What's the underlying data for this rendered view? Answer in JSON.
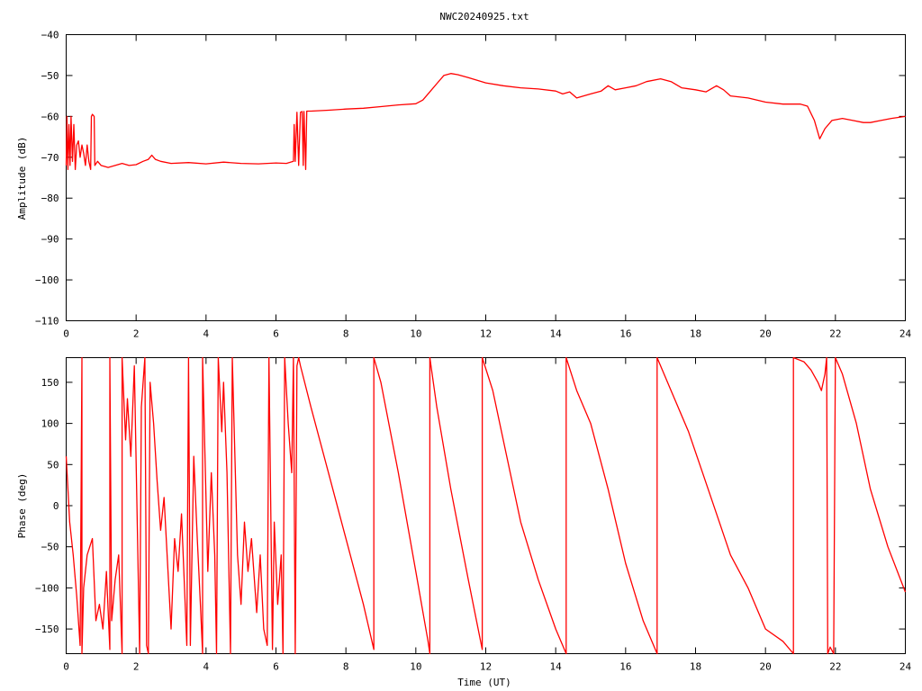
{
  "title": "NWC20240925.txt",
  "colors": {
    "series": "#ff0000",
    "axes": "#000000",
    "background": "#ffffff"
  },
  "chart_data": [
    {
      "type": "line",
      "ylabel": "Amplitude (dB)",
      "xlabel": "",
      "xlim": [
        0,
        24
      ],
      "ylim": [
        -110,
        -40
      ],
      "x_ticks": [
        "0",
        "2",
        "4",
        "6",
        "8",
        "10",
        "12",
        "14",
        "16",
        "18",
        "20",
        "22",
        "24"
      ],
      "y_ticks": [
        "-40",
        "-50",
        "-60",
        "-70",
        "-80",
        "-90",
        "-100",
        "-110"
      ],
      "grid": false,
      "series": [
        {
          "values": [
            [
              0.0,
              -72
            ],
            [
              0.02,
              -60
            ],
            [
              0.05,
              -73
            ],
            [
              0.08,
              -62
            ],
            [
              0.11,
              -72
            ],
            [
              0.14,
              -60
            ],
            [
              0.18,
              -71
            ],
            [
              0.22,
              -62
            ],
            [
              0.26,
              -73
            ],
            [
              0.3,
              -67
            ],
            [
              0.35,
              -66
            ],
            [
              0.4,
              -70
            ],
            [
              0.45,
              -67
            ],
            [
              0.5,
              -69
            ],
            [
              0.55,
              -72
            ],
            [
              0.6,
              -67
            ],
            [
              0.65,
              -71
            ],
            [
              0.7,
              -73
            ],
            [
              0.72,
              -60
            ],
            [
              0.75,
              -59.5
            ],
            [
              0.8,
              -60
            ],
            [
              0.82,
              -72
            ],
            [
              0.9,
              -71
            ],
            [
              1.0,
              -72
            ],
            [
              1.2,
              -72.5
            ],
            [
              1.4,
              -72
            ],
            [
              1.6,
              -71.5
            ],
            [
              1.8,
              -72
            ],
            [
              2.0,
              -71.8
            ],
            [
              2.2,
              -71
            ],
            [
              2.35,
              -70.5
            ],
            [
              2.45,
              -69.5
            ],
            [
              2.55,
              -70.5
            ],
            [
              2.7,
              -71
            ],
            [
              3.0,
              -71.5
            ],
            [
              3.5,
              -71.3
            ],
            [
              4.0,
              -71.6
            ],
            [
              4.5,
              -71.2
            ],
            [
              5.0,
              -71.5
            ],
            [
              5.5,
              -71.6
            ],
            [
              6.0,
              -71.4
            ],
            [
              6.3,
              -71.5
            ],
            [
              6.5,
              -71
            ],
            [
              6.52,
              -62
            ],
            [
              6.55,
              -71
            ],
            [
              6.6,
              -59
            ],
            [
              6.65,
              -72
            ],
            [
              6.7,
              -59
            ],
            [
              6.75,
              -58.8
            ],
            [
              6.78,
              -72
            ],
            [
              6.8,
              -58.8
            ],
            [
              6.85,
              -73
            ],
            [
              6.88,
              -58.7
            ],
            [
              7.0,
              -58.7
            ],
            [
              7.5,
              -58.5
            ],
            [
              8.0,
              -58.2
            ],
            [
              8.5,
              -58
            ],
            [
              9.0,
              -57.6
            ],
            [
              9.5,
              -57.2
            ],
            [
              10.0,
              -56.9
            ],
            [
              10.2,
              -56
            ],
            [
              10.4,
              -54
            ],
            [
              10.6,
              -52
            ],
            [
              10.8,
              -50
            ],
            [
              11.0,
              -49.5
            ],
            [
              11.2,
              -49.8
            ],
            [
              11.5,
              -50.5
            ],
            [
              12.0,
              -51.8
            ],
            [
              12.5,
              -52.5
            ],
            [
              13.0,
              -53
            ],
            [
              13.5,
              -53.3
            ],
            [
              14.0,
              -53.8
            ],
            [
              14.2,
              -54.5
            ],
            [
              14.4,
              -54
            ],
            [
              14.6,
              -55.5
            ],
            [
              14.8,
              -55
            ],
            [
              15.0,
              -54.5
            ],
            [
              15.3,
              -53.8
            ],
            [
              15.5,
              -52.5
            ],
            [
              15.7,
              -53.5
            ],
            [
              16.0,
              -53
            ],
            [
              16.3,
              -52.5
            ],
            [
              16.6,
              -51.5
            ],
            [
              17.0,
              -50.8
            ],
            [
              17.3,
              -51.5
            ],
            [
              17.6,
              -53
            ],
            [
              18.0,
              -53.5
            ],
            [
              18.3,
              -54
            ],
            [
              18.5,
              -53
            ],
            [
              18.6,
              -52.5
            ],
            [
              18.8,
              -53.5
            ],
            [
              19.0,
              -55
            ],
            [
              19.5,
              -55.5
            ],
            [
              20.0,
              -56.5
            ],
            [
              20.5,
              -57
            ],
            [
              21.0,
              -57
            ],
            [
              21.2,
              -57.5
            ],
            [
              21.4,
              -61
            ],
            [
              21.55,
              -65.5
            ],
            [
              21.7,
              -63
            ],
            [
              21.9,
              -61
            ],
            [
              22.2,
              -60.5
            ],
            [
              22.5,
              -61
            ],
            [
              22.8,
              -61.5
            ],
            [
              23.0,
              -61.5
            ],
            [
              23.3,
              -61
            ],
            [
              23.6,
              -60.5
            ],
            [
              24.0,
              -60
            ]
          ]
        }
      ]
    },
    {
      "type": "line",
      "ylabel": "Phase (deg)",
      "xlabel": "Time (UT)",
      "xlim": [
        0,
        24
      ],
      "ylim": [
        -180,
        180
      ],
      "x_ticks": [
        "0",
        "2",
        "4",
        "6",
        "8",
        "10",
        "12",
        "14",
        "16",
        "18",
        "20",
        "22",
        "24"
      ],
      "y_ticks": [
        "150",
        "100",
        "50",
        "0",
        "-50",
        "-100",
        "-150"
      ],
      "grid": false,
      "series": [
        {
          "values": [
            [
              0.0,
              60
            ],
            [
              0.1,
              -20
            ],
            [
              0.2,
              -60
            ],
            [
              0.3,
              -110
            ],
            [
              0.4,
              -170
            ],
            [
              0.45,
              180
            ],
            [
              0.45,
              -180
            ],
            [
              0.5,
              -100
            ],
            [
              0.6,
              -60
            ],
            [
              0.75,
              -40
            ],
            [
              0.85,
              -140
            ],
            [
              0.95,
              -120
            ],
            [
              1.05,
              -150
            ],
            [
              1.15,
              -80
            ],
            [
              1.25,
              -175
            ],
            [
              1.25,
              180
            ],
            [
              1.3,
              -140
            ],
            [
              1.4,
              -90
            ],
            [
              1.5,
              -60
            ],
            [
              1.6,
              -180
            ],
            [
              1.6,
              180
            ],
            [
              1.7,
              80
            ],
            [
              1.75,
              130
            ],
            [
              1.85,
              60
            ],
            [
              1.95,
              170
            ],
            [
              2.05,
              -60
            ],
            [
              2.1,
              -180
            ],
            [
              2.15,
              120
            ],
            [
              2.25,
              180
            ],
            [
              2.3,
              -170
            ],
            [
              2.35,
              -180
            ],
            [
              2.4,
              150
            ],
            [
              2.5,
              100
            ],
            [
              2.6,
              30
            ],
            [
              2.7,
              -30
            ],
            [
              2.8,
              10
            ],
            [
              2.9,
              -70
            ],
            [
              3.0,
              -150
            ],
            [
              3.1,
              -40
            ],
            [
              3.2,
              -80
            ],
            [
              3.3,
              -10
            ],
            [
              3.45,
              -170
            ],
            [
              3.5,
              180
            ],
            [
              3.55,
              -170
            ],
            [
              3.65,
              60
            ],
            [
              3.75,
              -40
            ],
            [
              3.85,
              -130
            ],
            [
              3.9,
              -180
            ],
            [
              3.9,
              180
            ],
            [
              4.05,
              -80
            ],
            [
              4.15,
              40
            ],
            [
              4.25,
              -60
            ],
            [
              4.3,
              -180
            ],
            [
              4.35,
              180
            ],
            [
              4.45,
              90
            ],
            [
              4.5,
              150
            ],
            [
              4.6,
              40
            ],
            [
              4.7,
              -180
            ],
            [
              4.75,
              180
            ],
            [
              4.9,
              -60
            ],
            [
              5.0,
              -120
            ],
            [
              5.1,
              -20
            ],
            [
              5.2,
              -80
            ],
            [
              5.3,
              -40
            ],
            [
              5.45,
              -130
            ],
            [
              5.55,
              -60
            ],
            [
              5.65,
              -150
            ],
            [
              5.75,
              -170
            ],
            [
              5.8,
              180
            ],
            [
              5.9,
              -175
            ],
            [
              5.95,
              -20
            ],
            [
              6.05,
              -120
            ],
            [
              6.15,
              -60
            ],
            [
              6.2,
              -180
            ],
            [
              6.25,
              180
            ],
            [
              6.35,
              100
            ],
            [
              6.45,
              40
            ],
            [
              6.5,
              180
            ],
            [
              6.55,
              -180
            ],
            [
              6.6,
              170
            ],
            [
              6.65,
              180
            ],
            [
              6.7,
              170
            ],
            [
              7.0,
              120
            ],
            [
              7.5,
              40
            ],
            [
              8.0,
              -40
            ],
            [
              8.5,
              -120
            ],
            [
              8.8,
              -175
            ],
            [
              8.8,
              180
            ],
            [
              9.0,
              150
            ],
            [
              9.5,
              40
            ],
            [
              10.0,
              -80
            ],
            [
              10.35,
              -165
            ],
            [
              10.4,
              -180
            ],
            [
              10.4,
              180
            ],
            [
              10.6,
              120
            ],
            [
              11.0,
              20
            ],
            [
              11.5,
              -90
            ],
            [
              11.9,
              -175
            ],
            [
              11.9,
              180
            ],
            [
              12.2,
              140
            ],
            [
              12.6,
              60
            ],
            [
              13.0,
              -20
            ],
            [
              13.5,
              -90
            ],
            [
              14.0,
              -150
            ],
            [
              14.3,
              -180
            ],
            [
              14.3,
              180
            ],
            [
              14.6,
              140
            ],
            [
              15.0,
              100
            ],
            [
              15.5,
              20
            ],
            [
              16.0,
              -70
            ],
            [
              16.5,
              -140
            ],
            [
              16.9,
              -180
            ],
            [
              16.9,
              180
            ],
            [
              17.3,
              140
            ],
            [
              17.8,
              90
            ],
            [
              18.2,
              40
            ],
            [
              18.6,
              -10
            ],
            [
              19.0,
              -60
            ],
            [
              19.5,
              -100
            ],
            [
              20.0,
              -150
            ],
            [
              20.5,
              -165
            ],
            [
              20.8,
              -180
            ],
            [
              20.8,
              180
            ],
            [
              21.1,
              175
            ],
            [
              21.3,
              165
            ],
            [
              21.5,
              150
            ],
            [
              21.6,
              140
            ],
            [
              21.7,
              160
            ],
            [
              21.75,
              180
            ],
            [
              21.78,
              -180
            ],
            [
              21.85,
              -172
            ],
            [
              21.95,
              -180
            ],
            [
              22.0,
              180
            ],
            [
              22.2,
              160
            ],
            [
              22.6,
              100
            ],
            [
              23.0,
              20
            ],
            [
              23.5,
              -50
            ],
            [
              24.0,
              -105
            ]
          ]
        }
      ]
    }
  ]
}
